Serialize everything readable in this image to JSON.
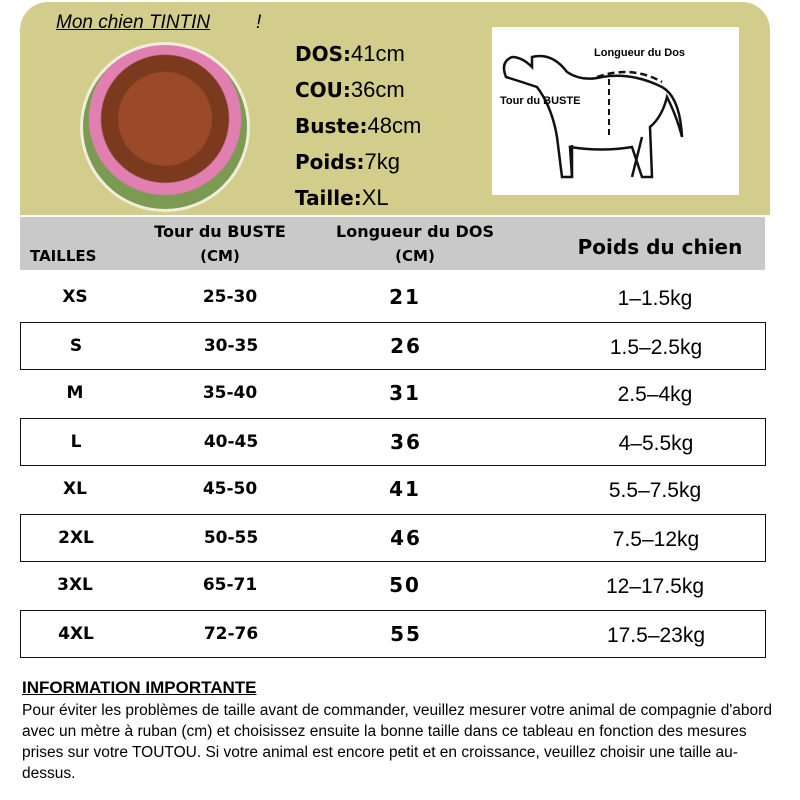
{
  "profile": {
    "title": "Mon chien TINTIN",
    "title_suffix": "!",
    "stats": [
      {
        "label": "DOS",
        "value": "41cm"
      },
      {
        "label": "COU",
        "value": "36cm"
      },
      {
        "label": "Buste",
        "value": "48cm"
      },
      {
        "label": "Poids",
        "value": "7kg"
      },
      {
        "label": "Taille",
        "value": "XL"
      }
    ]
  },
  "diagram": {
    "back_label": "Longueur du Dos",
    "chest_label": "Tour du BUSTE"
  },
  "table": {
    "headers": {
      "size": "TAILLES",
      "chest": "Tour du BUSTE",
      "chest_unit": "(CM)",
      "back": "Longueur du DOS",
      "back_unit": "(CM)",
      "weight": "Poids du chien"
    },
    "rows": [
      {
        "size": "XS",
        "chest": "25-30",
        "back": "21",
        "weight": "1–1.5kg"
      },
      {
        "size": "S",
        "chest": "30-35",
        "back": "26",
        "weight": "1.5–2.5kg"
      },
      {
        "size": "M",
        "chest": "35-40",
        "back": "31",
        "weight": "2.5–4kg"
      },
      {
        "size": "L",
        "chest": "40-45",
        "back": "36",
        "weight": "4–5.5kg"
      },
      {
        "size": "XL",
        "chest": "45-50",
        "back": "41",
        "weight": "5.5–7.5kg"
      },
      {
        "size": "2XL",
        "chest": "50-55",
        "back": "46",
        "weight": "7.5–12kg"
      },
      {
        "size": "3XL",
        "chest": "65-71",
        "back": "50",
        "weight": "12–17.5kg"
      },
      {
        "size": "4XL",
        "chest": "72-76",
        "back": "55",
        "weight": "17.5–23kg"
      }
    ]
  },
  "info": {
    "heading": "INFORMATION IMPORTANTE",
    "text": "Pour éviter les problèmes de taille avant de commander, veuillez mesurer votre animal de compagnie d'abord avec un mètre à ruban (cm) et choisissez ensuite la bonne taille dans ce tableau en fonction des mesures prises sur votre TOUTOU. Si votre animal est encore petit et en croissance, veuillez choisir une taille au-dessus."
  },
  "colors": {
    "panel": "#d3cd8b",
    "header": "#c9c9c9"
  }
}
